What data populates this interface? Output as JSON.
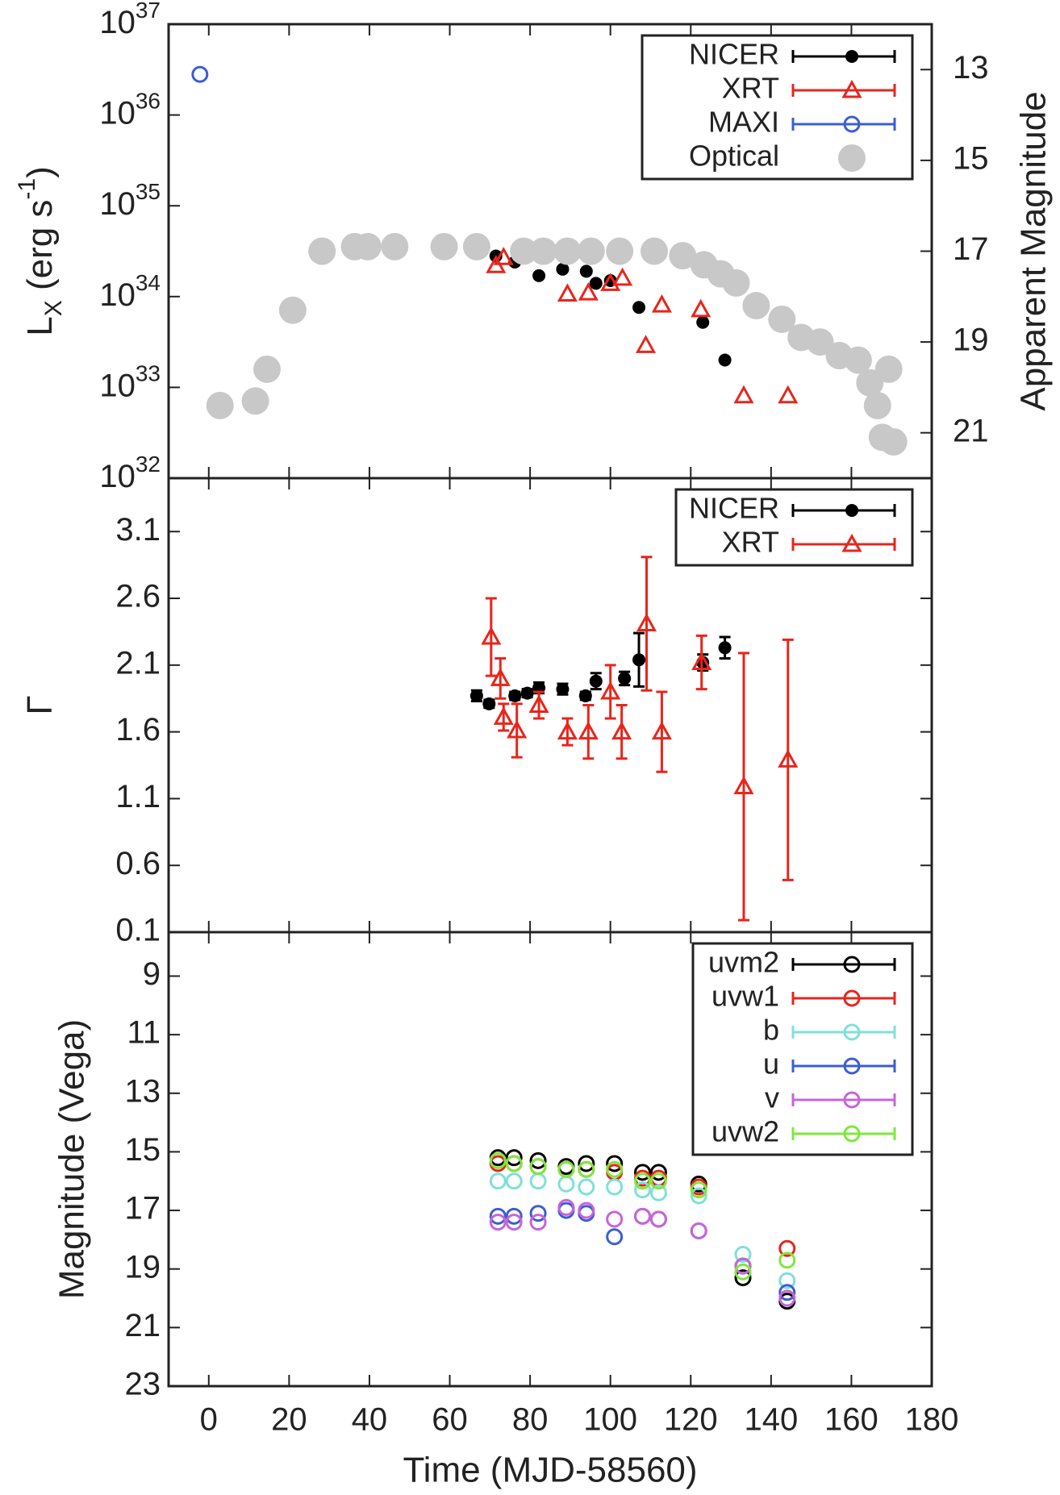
{
  "chart_data": [
    {
      "type": "scatter",
      "log_y": true,
      "y_label": [
        "L",
        "X",
        " (erg s",
        "-1",
        ")"
      ],
      "y2_label": "Apparent Magnitude",
      "ylim": [
        1e+32,
        1e+37
      ],
      "yticks": [
        {
          "value": 1e+32,
          "label": "10",
          "exponent": "32"
        },
        {
          "value": 1e+33,
          "label": "10",
          "exponent": "33"
        },
        {
          "value": 1e+34,
          "label": "10",
          "exponent": "34"
        },
        {
          "value": 1e+35,
          "label": "10",
          "exponent": "35"
        },
        {
          "value": 1e+36,
          "label": "10",
          "exponent": "36"
        },
        {
          "value": 1e+37,
          "label": "10",
          "exponent": "37"
        }
      ],
      "y2lim": [
        22,
        12
      ],
      "y2ticks": [
        13,
        15,
        17,
        19,
        21
      ],
      "legend": "upper right",
      "series": [
        {
          "name": "NICER",
          "color": "#000000",
          "marker": "filled-circle",
          "x": [
            71.5,
            76.2,
            82.2,
            88.1,
            94,
            96.4,
            100,
            107.1,
            123,
            128.5
          ],
          "values": [
            2.8e+34,
            2.4e+34,
            1.7e+34,
            2e+34,
            1.9e+34,
            1.4e+34,
            1.5e+34,
            7.6e+33,
            5.2e+33,
            2e+33
          ]
        },
        {
          "name": "XRT",
          "color": "#e8251b",
          "marker": "open-triangle",
          "x": [
            71.5,
            73.4,
            89.3,
            94.5,
            100,
            103,
            108.8,
            112.8,
            122.5,
            133.2,
            144.2
          ],
          "values": [
            2.2e+34,
            2.7e+34,
            1.07e+34,
            1.1e+34,
            1.4e+34,
            1.6e+34,
            2.9e+33,
            8.1e+33,
            7.2e+33,
            8.1e+32,
            8.1e+32
          ]
        },
        {
          "name": "MAXI",
          "color": "#3b5fd0",
          "marker": "open-circle",
          "x": [
            -2.2
          ],
          "values": [
            2.8e+36
          ]
        },
        {
          "name": "Optical",
          "color": "#c8c8c8",
          "marker": "big-circle",
          "axis": "y2",
          "x": [
            2.8,
            11.6,
            14.5,
            20.9,
            28.2,
            36.3,
            39.6,
            46.3,
            58.6,
            66.7,
            78.4,
            83.3,
            89.3,
            95.2,
            102.3,
            110.9,
            118,
            123.3,
            127.5,
            131.3,
            136.3,
            142.7,
            147.5,
            152.2,
            157,
            161.7,
            164.6,
            166.5,
            169.3,
            167.7,
            170.5
          ],
          "values": [
            20.4,
            20.3,
            19.6,
            18.3,
            17.0,
            16.9,
            16.9,
            16.9,
            16.9,
            16.9,
            17.0,
            17.0,
            17.0,
            17.0,
            17.0,
            17.0,
            17.1,
            17.3,
            17.5,
            17.7,
            18.2,
            18.5,
            18.9,
            19.0,
            19.3,
            19.4,
            19.9,
            20.4,
            19.6,
            21.1,
            21.2
          ]
        }
      ]
    },
    {
      "type": "scatter",
      "y_label": "Γ",
      "ylim": [
        0.1,
        3.5
      ],
      "yticks": [
        0.1,
        0.6,
        1.1,
        1.6,
        2.1,
        2.6,
        3.1
      ],
      "legend": "upper right",
      "series": [
        {
          "name": "NICER",
          "color": "#000000",
          "marker": "filled-circle",
          "x": [
            66.7,
            69.8,
            76.2,
            79.3,
            82.2,
            88.1,
            93.8,
            96.4,
            103.5,
            107.1,
            123,
            128.5
          ],
          "values": [
            1.87,
            1.81,
            1.87,
            1.89,
            1.93,
            1.92,
            1.87,
            1.98,
            2.0,
            2.14,
            2.12,
            2.23
          ],
          "errors": [
            0.04,
            0.03,
            0.03,
            0.03,
            0.04,
            0.04,
            0.03,
            0.06,
            0.05,
            0.2,
            0.06,
            0.08
          ]
        },
        {
          "name": "XRT",
          "color": "#e8251b",
          "marker": "open-triangle",
          "x": [
            70.3,
            72.6,
            73.4,
            76.7,
            82.2,
            89.3,
            94.5,
            100,
            102.8,
            109,
            112.8,
            122.7,
            133.2,
            144.2
          ],
          "values": [
            2.31,
            2.0,
            1.71,
            1.61,
            1.8,
            1.6,
            1.6,
            1.9,
            1.6,
            2.41,
            1.6,
            2.12,
            1.19,
            1.39
          ],
          "errors": [
            0.29,
            0.15,
            0.1,
            0.2,
            0.1,
            0.1,
            0.2,
            0.2,
            0.2,
            0.5,
            0.3,
            0.2,
            1.0,
            0.9
          ]
        }
      ]
    },
    {
      "type": "scatter",
      "x_label": "Time (MJD-58560)",
      "y_label": "Magnitude (Vega)",
      "xlim": [
        -10,
        180
      ],
      "xticks": [
        0,
        20,
        40,
        60,
        80,
        100,
        120,
        140,
        160,
        180
      ],
      "ylim": [
        23,
        7.5
      ],
      "yticks": [
        9,
        11,
        13,
        15,
        17,
        19,
        21,
        23
      ],
      "legend": "upper right",
      "x": [
        72,
        76,
        82,
        89,
        94,
        101,
        108,
        112,
        122,
        133,
        144
      ],
      "series": [
        {
          "name": "uvm2",
          "color": "#000000",
          "marker": "open-circle",
          "values": [
            15.2,
            15.2,
            15.3,
            15.5,
            15.4,
            15.4,
            15.7,
            15.7,
            16.1,
            19.3,
            20.1
          ]
        },
        {
          "name": "uvw1",
          "color": "#e8251b",
          "marker": "open-circle",
          "values": [
            15.4,
            15.4,
            15.5,
            15.6,
            15.6,
            15.7,
            15.9,
            15.9,
            16.2,
            18.9,
            18.3
          ]
        },
        {
          "name": "b",
          "color": "#7fe0d8",
          "marker": "open-circle",
          "values": [
            16.0,
            16.0,
            16.0,
            16.1,
            16.2,
            16.2,
            16.3,
            16.4,
            16.5,
            18.5,
            19.4
          ]
        },
        {
          "name": "u",
          "color": "#3b5fd0",
          "marker": "open-circle",
          "values": [
            17.2,
            17.2,
            17.1,
            17.0,
            17.1,
            17.9,
            17.2,
            17.3,
            17.7,
            18.9,
            19.8
          ]
        },
        {
          "name": "v",
          "color": "#c864d8",
          "marker": "open-circle",
          "values": [
            17.4,
            17.4,
            17.4,
            16.9,
            17.0,
            17.3,
            17.2,
            17.3,
            17.7,
            18.9,
            20.0
          ]
        },
        {
          "name": "uvw2",
          "color": "#7ee83c",
          "marker": "open-circle",
          "values": [
            15.3,
            15.4,
            15.5,
            15.6,
            15.6,
            15.6,
            16.0,
            16.0,
            16.3,
            19.1,
            18.7
          ]
        }
      ]
    }
  ]
}
